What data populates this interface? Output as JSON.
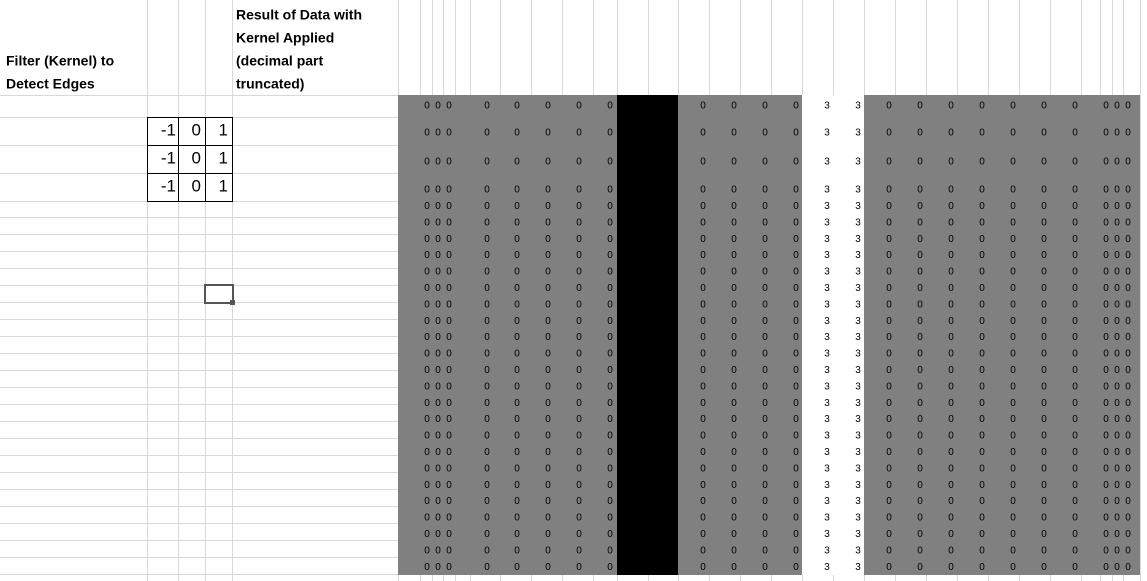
{
  "header": {
    "filter_label": [
      "Filter (Kernel) to",
      "Detect Edges"
    ],
    "result_label": [
      "Result of Data with",
      "Kernel Applied",
      "(decimal part",
      "truncated)"
    ]
  },
  "kernel": [
    [
      -1,
      0,
      1
    ],
    [
      -1,
      0,
      1
    ],
    [
      -1,
      0,
      1
    ]
  ],
  "result": {
    "rows": [
      [
        0,
        0,
        0,
        0,
        0,
        0,
        0,
        0,
        0,
        0,
        0,
        0,
        3,
        3,
        0,
        0,
        0,
        0,
        0,
        0,
        0,
        0,
        0,
        0
      ],
      [
        0,
        0,
        0,
        0,
        0,
        0,
        0,
        0,
        0,
        0,
        0,
        0,
        3,
        3,
        0,
        0,
        0,
        0,
        0,
        0,
        0,
        0,
        0,
        0
      ],
      [
        0,
        0,
        0,
        0,
        0,
        0,
        0,
        0,
        0,
        0,
        0,
        0,
        3,
        3,
        0,
        0,
        0,
        0,
        0,
        0,
        0,
        0,
        0,
        0
      ],
      [
        0,
        0,
        0,
        0,
        0,
        0,
        0,
        0,
        0,
        0,
        0,
        0,
        3,
        3,
        0,
        0,
        0,
        0,
        0,
        0,
        0,
        0,
        0,
        0
      ],
      [
        0,
        0,
        0,
        0,
        0,
        0,
        0,
        0,
        0,
        0,
        0,
        0,
        3,
        3,
        0,
        0,
        0,
        0,
        0,
        0,
        0,
        0,
        0,
        0
      ],
      [
        0,
        0,
        0,
        0,
        0,
        0,
        0,
        0,
        0,
        0,
        0,
        0,
        3,
        3,
        0,
        0,
        0,
        0,
        0,
        0,
        0,
        0,
        0,
        0
      ],
      [
        0,
        0,
        0,
        0,
        0,
        0,
        0,
        0,
        0,
        0,
        0,
        0,
        3,
        3,
        0,
        0,
        0,
        0,
        0,
        0,
        0,
        0,
        0,
        0
      ],
      [
        0,
        0,
        0,
        0,
        0,
        0,
        0,
        0,
        0,
        0,
        0,
        0,
        3,
        3,
        0,
        0,
        0,
        0,
        0,
        0,
        0,
        0,
        0,
        0
      ],
      [
        0,
        0,
        0,
        0,
        0,
        0,
        0,
        0,
        0,
        0,
        0,
        0,
        3,
        3,
        0,
        0,
        0,
        0,
        0,
        0,
        0,
        0,
        0,
        0
      ],
      [
        0,
        0,
        0,
        0,
        0,
        0,
        0,
        0,
        0,
        0,
        0,
        0,
        3,
        3,
        0,
        0,
        0,
        0,
        0,
        0,
        0,
        0,
        0,
        0
      ],
      [
        0,
        0,
        0,
        0,
        0,
        0,
        0,
        0,
        0,
        0,
        0,
        0,
        3,
        3,
        0,
        0,
        0,
        0,
        0,
        0,
        0,
        0,
        0,
        0
      ],
      [
        0,
        0,
        0,
        0,
        0,
        0,
        0,
        0,
        0,
        0,
        0,
        0,
        3,
        3,
        0,
        0,
        0,
        0,
        0,
        0,
        0,
        0,
        0,
        0
      ],
      [
        0,
        0,
        0,
        0,
        0,
        0,
        0,
        0,
        0,
        0,
        0,
        0,
        3,
        3,
        0,
        0,
        0,
        0,
        0,
        0,
        0,
        0,
        0,
        0
      ],
      [
        0,
        0,
        0,
        0,
        0,
        0,
        0,
        0,
        0,
        0,
        0,
        0,
        3,
        3,
        0,
        0,
        0,
        0,
        0,
        0,
        0,
        0,
        0,
        0
      ],
      [
        0,
        0,
        0,
        0,
        0,
        0,
        0,
        0,
        0,
        0,
        0,
        0,
        3,
        3,
        0,
        0,
        0,
        0,
        0,
        0,
        0,
        0,
        0,
        0
      ],
      [
        0,
        0,
        0,
        0,
        0,
        0,
        0,
        0,
        0,
        0,
        0,
        0,
        3,
        3,
        0,
        0,
        0,
        0,
        0,
        0,
        0,
        0,
        0,
        0
      ],
      [
        0,
        0,
        0,
        0,
        0,
        0,
        0,
        0,
        0,
        0,
        0,
        0,
        3,
        3,
        0,
        0,
        0,
        0,
        0,
        0,
        0,
        0,
        0,
        0
      ],
      [
        0,
        0,
        0,
        0,
        0,
        0,
        0,
        0,
        0,
        0,
        0,
        0,
        3,
        3,
        0,
        0,
        0,
        0,
        0,
        0,
        0,
        0,
        0,
        0
      ],
      [
        0,
        0,
        0,
        0,
        0,
        0,
        0,
        0,
        0,
        0,
        0,
        0,
        3,
        3,
        0,
        0,
        0,
        0,
        0,
        0,
        0,
        0,
        0,
        0
      ],
      [
        0,
        0,
        0,
        0,
        0,
        0,
        0,
        0,
        0,
        0,
        0,
        0,
        3,
        3,
        0,
        0,
        0,
        0,
        0,
        0,
        0,
        0,
        0,
        0
      ],
      [
        0,
        0,
        0,
        0,
        0,
        0,
        0,
        0,
        0,
        0,
        0,
        0,
        3,
        3,
        0,
        0,
        0,
        0,
        0,
        0,
        0,
        0,
        0,
        0
      ],
      [
        0,
        0,
        0,
        0,
        0,
        0,
        0,
        0,
        0,
        0,
        0,
        0,
        3,
        3,
        0,
        0,
        0,
        0,
        0,
        0,
        0,
        0,
        0,
        0
      ],
      [
        0,
        0,
        0,
        0,
        0,
        0,
        0,
        0,
        0,
        0,
        0,
        0,
        3,
        3,
        0,
        0,
        0,
        0,
        0,
        0,
        0,
        0,
        0,
        0
      ],
      [
        0,
        0,
        0,
        0,
        0,
        0,
        0,
        0,
        0,
        0,
        0,
        0,
        3,
        3,
        0,
        0,
        0,
        0,
        0,
        0,
        0,
        0,
        0,
        0
      ],
      [
        0,
        0,
        0,
        0,
        0,
        0,
        0,
        0,
        0,
        0,
        0,
        0,
        3,
        3,
        0,
        0,
        0,
        0,
        0,
        0,
        0,
        0,
        0,
        0
      ],
      [
        0,
        0,
        0,
        0,
        0,
        0,
        0,
        0,
        0,
        0,
        0,
        0,
        3,
        3,
        0,
        0,
        0,
        0,
        0,
        0,
        0,
        0,
        0,
        0
      ],
      [
        0,
        0,
        0,
        0,
        0,
        0,
        0,
        0,
        0,
        0,
        0,
        0,
        3,
        3,
        0,
        0,
        0,
        0,
        0,
        0,
        0,
        0,
        0,
        0
      ]
    ]
  }
}
